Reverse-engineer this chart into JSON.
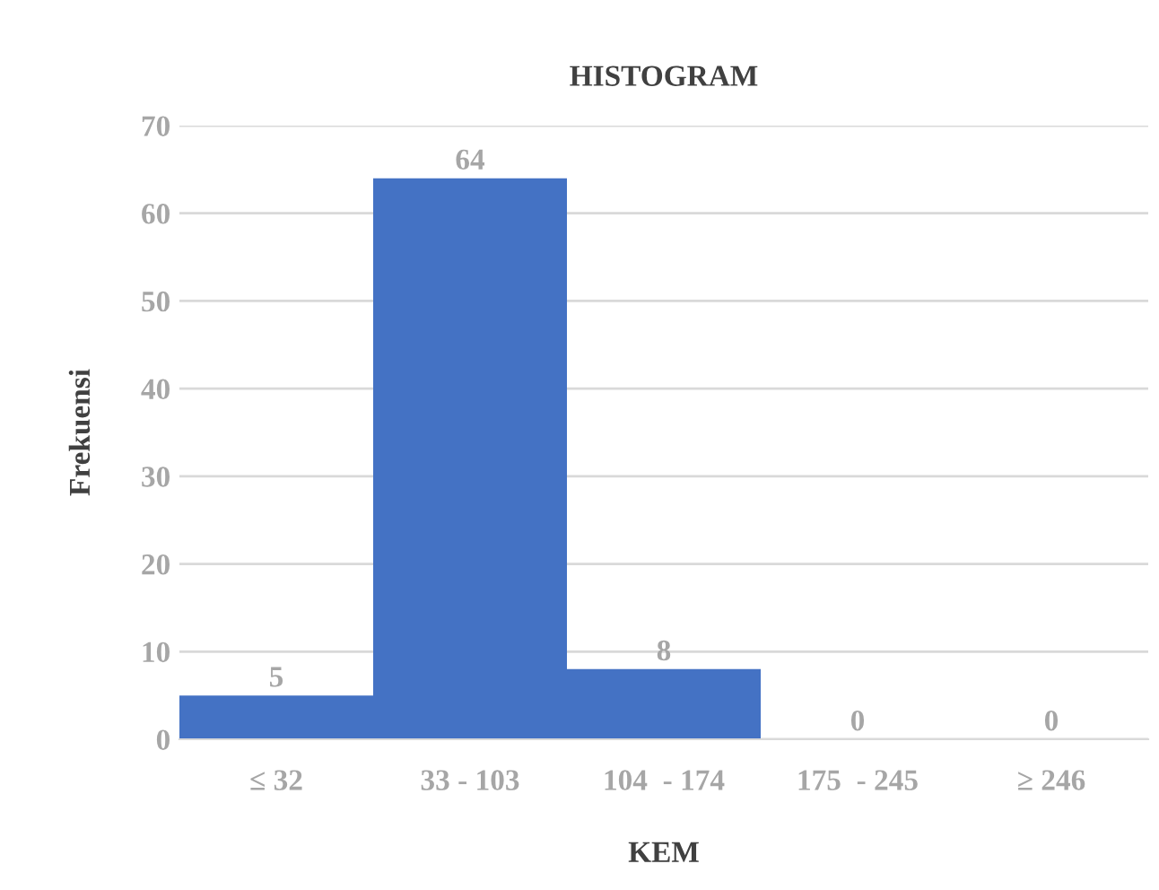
{
  "chart_data": {
    "type": "bar",
    "title": "HISTOGRAM",
    "xlabel": "KEM",
    "ylabel": "Frekuensi",
    "categories": [
      "≤ 32",
      "33 - 103",
      "104  - 174",
      "175  - 245",
      "≥ 246"
    ],
    "values": [
      5,
      64,
      8,
      0,
      0
    ],
    "color": "#4472c4",
    "ylim": [
      0,
      70
    ],
    "yticks": [
      0,
      10,
      20,
      30,
      40,
      50,
      60,
      70
    ],
    "grid": "y",
    "data_labels": true
  }
}
